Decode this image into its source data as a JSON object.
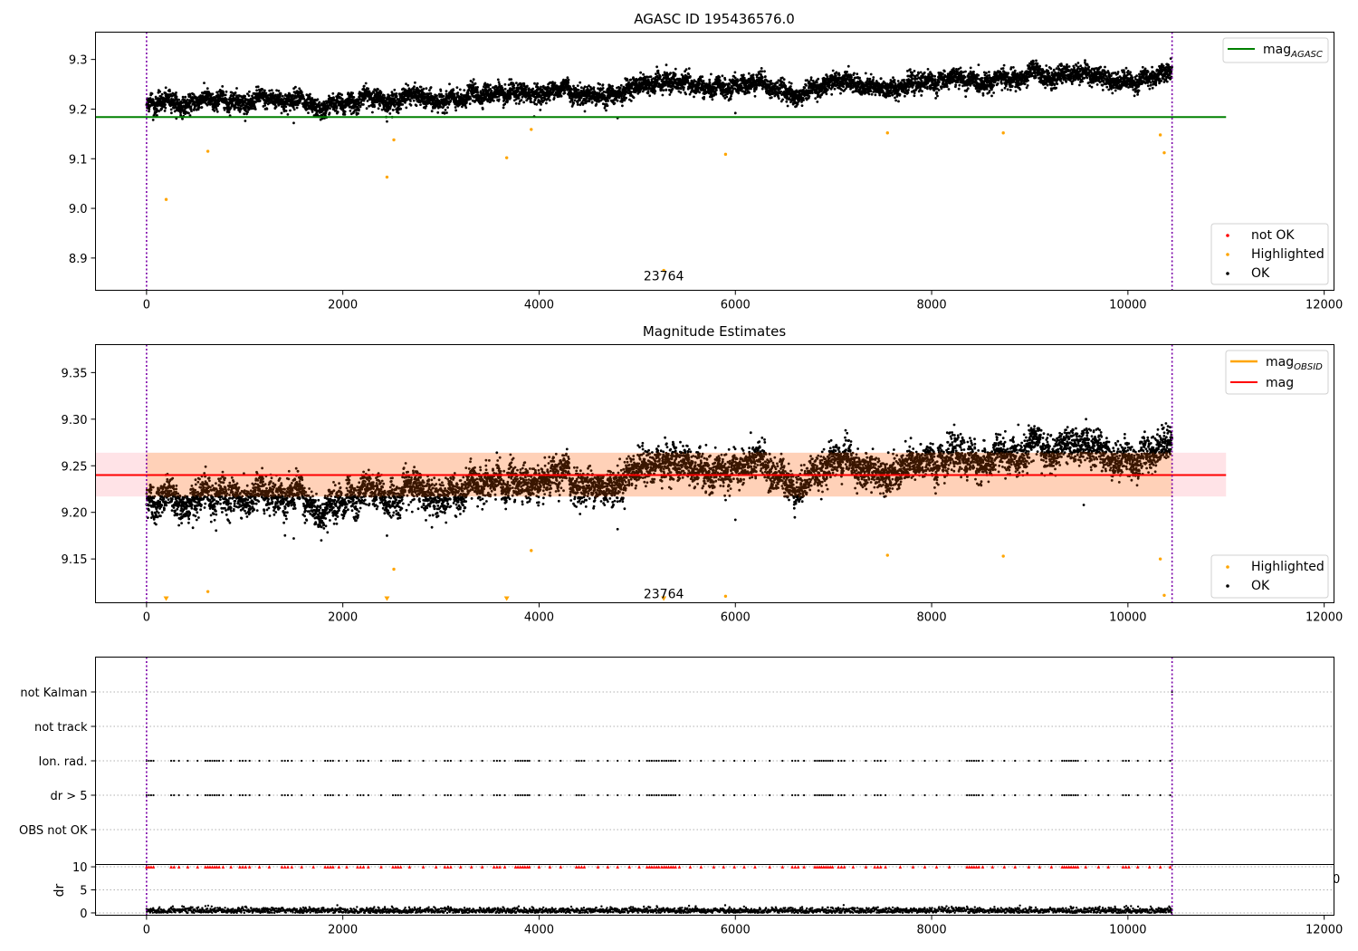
{
  "chart_data": [
    {
      "type": "scatter",
      "title": "AGASC ID 195436576.0",
      "xlim": [
        -520,
        12100
      ],
      "ylim": [
        8.835,
        9.355
      ],
      "x_ticks": [
        0,
        2000,
        4000,
        6000,
        8000,
        10000,
        12000
      ],
      "y_ticks": [
        8.9,
        9.0,
        9.1,
        9.2,
        9.3
      ],
      "y_tick_labels": [
        "8.9",
        "9.0",
        "9.1",
        "9.2",
        "9.3"
      ],
      "x_tick_labels": [
        "0",
        "2000",
        "4000",
        "6000",
        "8000",
        "10000",
        "12000"
      ],
      "vlines": [
        0,
        10450
      ],
      "hline": {
        "name": "mag",
        "subscript": "AGASC",
        "y": 9.184,
        "x_end": 11000,
        "color": "#008000"
      },
      "series": [
        {
          "name": "not OK",
          "color": "#ff0000",
          "points": []
        },
        {
          "name": "Highlighted",
          "color": "#ffa500",
          "points": [
            [
              200,
              9.018
            ],
            [
              625,
              9.115
            ],
            [
              2450,
              9.063
            ],
            [
              2520,
              9.138
            ],
            [
              3670,
              9.102
            ],
            [
              3920,
              9.159
            ],
            [
              5900,
              9.109
            ],
            [
              7550,
              9.152
            ],
            [
              8730,
              9.152
            ],
            [
              10330,
              9.148
            ],
            [
              10370,
              9.112
            ],
            [
              5270,
              8.875
            ]
          ]
        },
        {
          "name": "OK",
          "color": "#000000",
          "trend": "dense band rising from ~9.21 at x=0 to ~9.26 at x=10450",
          "points": [
            [
              1500,
              9.172
            ],
            [
              2450,
              9.175
            ],
            [
              6000,
              9.192
            ],
            [
              4800,
              9.182
            ],
            [
              3950,
              9.185
            ]
          ]
        }
      ],
      "annotation": {
        "text": "23764",
        "x": 5270,
        "y": 8.855
      },
      "legend_upper": "top-right",
      "legend_lower": "bottom-right"
    },
    {
      "type": "scatter",
      "title": "Magnitude Estimates",
      "xlim": [
        -520,
        12100
      ],
      "ylim": [
        9.103,
        9.38
      ],
      "x_ticks": [
        0,
        2000,
        4000,
        6000,
        8000,
        10000,
        12000
      ],
      "y_ticks": [
        9.15,
        9.2,
        9.25,
        9.3,
        9.35
      ],
      "y_tick_labels": [
        "9.15",
        "9.20",
        "9.25",
        "9.30",
        "9.35"
      ],
      "x_tick_labels": [
        "0",
        "2000",
        "4000",
        "6000",
        "8000",
        "10000",
        "12000"
      ],
      "vlines": [
        0,
        10450
      ],
      "mag_line": {
        "name": "mag",
        "y": 9.24,
        "band": [
          9.217,
          9.264
        ],
        "x_end": 11000,
        "color": "#ff0000"
      },
      "obsid_name": "mag",
      "obsid_subscript": "OBSID",
      "obsid_color": "#ffa500",
      "series": [
        {
          "name": "Highlighted",
          "color": "#ffa500",
          "points": [
            [
              625,
              9.115
            ],
            [
              2520,
              9.139
            ],
            [
              3920,
              9.159
            ],
            [
              5900,
              9.11
            ],
            [
              7550,
              9.154
            ],
            [
              8730,
              9.153
            ],
            [
              10330,
              9.15
            ],
            [
              10370,
              9.111
            ]
          ]
        },
        {
          "name": "OK",
          "color": "#000000",
          "points": [
            [
              1500,
              9.172
            ],
            [
              2450,
              9.175
            ],
            [
              6000,
              9.192
            ],
            [
              4800,
              9.182
            ],
            [
              9550,
              9.208
            ]
          ]
        }
      ],
      "markers_below": [
        200,
        2450,
        3670,
        5270
      ],
      "annotation": {
        "text": "23764",
        "x": 5270,
        "y": 9.108
      },
      "legend": "bottom-right"
    },
    {
      "type": "scatter",
      "title": "",
      "xlim": [
        -520,
        12100
      ],
      "categories": [
        "not Kalman",
        "not track",
        "Ion. rad.",
        "dr > 5",
        "OBS not OK"
      ],
      "vlines": [
        0,
        10450
      ],
      "flag_points": {
        "Ion. rad.": [
          [
            0,
            70
          ],
          [
            250,
            30
          ],
          [
            330,
            20
          ],
          [
            420,
            20
          ],
          [
            520,
            20
          ],
          [
            600,
            140
          ],
          [
            780,
            20
          ],
          [
            860,
            20
          ],
          [
            950,
            60
          ],
          [
            1050,
            20
          ],
          [
            1150,
            20
          ],
          [
            1250,
            20
          ],
          [
            1380,
            60
          ],
          [
            1480,
            20
          ],
          [
            1580,
            20
          ],
          [
            1700,
            20
          ],
          [
            1820,
            80
          ],
          [
            1960,
            20
          ],
          [
            2040,
            20
          ],
          [
            2150,
            60
          ],
          [
            2260,
            20
          ],
          [
            2390,
            20
          ],
          [
            2510,
            80
          ],
          [
            2680,
            20
          ],
          [
            2820,
            20
          ],
          [
            2950,
            20
          ],
          [
            3040,
            60
          ],
          [
            3200,
            20
          ],
          [
            3310,
            20
          ],
          [
            3420,
            20
          ],
          [
            3540,
            60
          ],
          [
            3650,
            20
          ],
          [
            3760,
            120
          ],
          [
            3900,
            20
          ],
          [
            4000,
            20
          ],
          [
            4110,
            20
          ],
          [
            4220,
            20
          ],
          [
            4380,
            80
          ],
          [
            4600,
            20
          ],
          [
            4700,
            20
          ],
          [
            4800,
            20
          ],
          [
            4920,
            20
          ],
          [
            5020,
            20
          ],
          [
            5100,
            120
          ],
          [
            5250,
            140
          ],
          [
            5430,
            20
          ],
          [
            5540,
            20
          ],
          [
            5650,
            20
          ],
          [
            5780,
            20
          ],
          [
            5880,
            20
          ],
          [
            5990,
            20
          ],
          [
            6090,
            20
          ],
          [
            6200,
            20
          ],
          [
            6350,
            20
          ],
          [
            6480,
            20
          ],
          [
            6580,
            60
          ],
          [
            6700,
            20
          ],
          [
            6810,
            180
          ],
          [
            7050,
            60
          ],
          [
            7200,
            20
          ],
          [
            7330,
            20
          ],
          [
            7420,
            60
          ],
          [
            7530,
            20
          ],
          [
            7680,
            20
          ],
          [
            7810,
            20
          ],
          [
            7930,
            20
          ],
          [
            8050,
            20
          ],
          [
            8180,
            20
          ],
          [
            8360,
            120
          ],
          [
            8520,
            20
          ],
          [
            8620,
            20
          ],
          [
            8740,
            20
          ],
          [
            8850,
            20
          ],
          [
            8990,
            20
          ],
          [
            9100,
            20
          ],
          [
            9220,
            20
          ],
          [
            9330,
            160
          ],
          [
            9570,
            20
          ],
          [
            9700,
            20
          ],
          [
            9800,
            20
          ],
          [
            9950,
            60
          ],
          [
            10100,
            20
          ],
          [
            10220,
            20
          ],
          [
            10330,
            20
          ],
          [
            10430,
            20
          ]
        ],
        "dr > 5": [
          [
            0,
            70
          ],
          [
            250,
            30
          ],
          [
            330,
            20
          ],
          [
            420,
            20
          ],
          [
            520,
            20
          ],
          [
            600,
            140
          ],
          [
            780,
            20
          ],
          [
            860,
            20
          ],
          [
            950,
            60
          ],
          [
            1050,
            20
          ],
          [
            1150,
            20
          ],
          [
            1250,
            20
          ],
          [
            1380,
            60
          ],
          [
            1480,
            20
          ],
          [
            1580,
            20
          ],
          [
            1700,
            20
          ],
          [
            1820,
            80
          ],
          [
            1960,
            20
          ],
          [
            2040,
            20
          ],
          [
            2150,
            60
          ],
          [
            2260,
            20
          ],
          [
            2390,
            20
          ],
          [
            2510,
            80
          ],
          [
            2680,
            20
          ],
          [
            2820,
            20
          ],
          [
            2950,
            20
          ],
          [
            3040,
            60
          ],
          [
            3200,
            20
          ],
          [
            3310,
            20
          ],
          [
            3420,
            20
          ],
          [
            3540,
            60
          ],
          [
            3650,
            20
          ],
          [
            3760,
            120
          ],
          [
            3900,
            20
          ],
          [
            4000,
            20
          ],
          [
            4110,
            20
          ],
          [
            4220,
            20
          ],
          [
            4380,
            80
          ],
          [
            4600,
            20
          ],
          [
            4700,
            20
          ],
          [
            4800,
            20
          ],
          [
            4920,
            20
          ],
          [
            5020,
            20
          ],
          [
            5100,
            120
          ],
          [
            5250,
            140
          ],
          [
            5430,
            20
          ],
          [
            5540,
            20
          ],
          [
            5650,
            20
          ],
          [
            5780,
            20
          ],
          [
            5880,
            20
          ],
          [
            5990,
            20
          ],
          [
            6090,
            20
          ],
          [
            6200,
            20
          ],
          [
            6350,
            20
          ],
          [
            6480,
            20
          ],
          [
            6580,
            60
          ],
          [
            6700,
            20
          ],
          [
            6810,
            180
          ],
          [
            7050,
            60
          ],
          [
            7200,
            20
          ],
          [
            7330,
            20
          ],
          [
            7420,
            60
          ],
          [
            7530,
            20
          ],
          [
            7680,
            20
          ],
          [
            7810,
            20
          ],
          [
            7930,
            20
          ],
          [
            8050,
            20
          ],
          [
            8180,
            20
          ],
          [
            8360,
            120
          ],
          [
            8520,
            20
          ],
          [
            8620,
            20
          ],
          [
            8740,
            20
          ],
          [
            8850,
            20
          ],
          [
            8990,
            20
          ],
          [
            9100,
            20
          ],
          [
            9220,
            20
          ],
          [
            9330,
            160
          ],
          [
            9570,
            20
          ],
          [
            9700,
            20
          ],
          [
            9800,
            20
          ],
          [
            9950,
            60
          ],
          [
            10100,
            20
          ],
          [
            10220,
            20
          ],
          [
            10330,
            20
          ],
          [
            10430,
            20
          ]
        ],
        "not Kalman": [
          [
            10450,
            1
          ]
        ]
      }
    },
    {
      "type": "scatter",
      "xlim": [
        -520,
        12100
      ],
      "ylim": [
        -0.5,
        10.5
      ],
      "y_ticks": [
        0,
        5,
        10
      ],
      "y_tick_labels": [
        "0",
        "5",
        "10"
      ],
      "x_ticks": [
        0,
        2000,
        4000,
        6000,
        8000,
        10000,
        12000
      ],
      "x_tick_labels": [
        "0",
        "2000",
        "4000",
        "6000",
        "8000",
        "10000",
        "12000"
      ],
      "ylabel": "dr",
      "vlines": [
        0,
        10450
      ],
      "dr_trend": "dense band of dr values ~0.2 to 1.5 across x=0..10450",
      "clipped_marker_color": "#ff0000",
      "stray_tick_label": "0"
    }
  ]
}
